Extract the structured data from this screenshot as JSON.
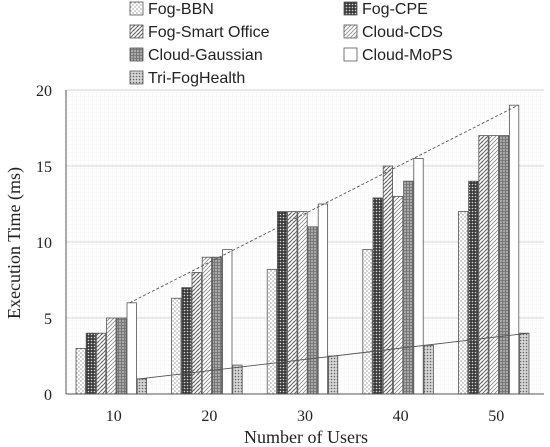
{
  "chart_data": {
    "type": "bar",
    "title": "",
    "xlabel": "Number of Users",
    "ylabel": "Execution Time (ms)",
    "categories": [
      "10",
      "20",
      "30",
      "40",
      "50"
    ],
    "ylim": [
      0,
      20
    ],
    "yticks": [
      "0",
      "5",
      "10",
      "15",
      "20"
    ],
    "grid": true,
    "legend_position": "top",
    "series": [
      {
        "name": "Fog-BBN",
        "values": [
          3,
          6.3,
          8.2,
          9.5,
          12
        ],
        "pattern": "dots-sparse"
      },
      {
        "name": "Fog-CPE",
        "values": [
          4,
          7,
          12,
          12.9,
          14
        ],
        "pattern": "dense-dark"
      },
      {
        "name": "Fog-Smart Office",
        "values": [
          4,
          8,
          12,
          15,
          17
        ],
        "pattern": "dense-diagonal"
      },
      {
        "name": "Cloud-CDS",
        "values": [
          5,
          9,
          12,
          13,
          17
        ],
        "pattern": "diag-light"
      },
      {
        "name": "Cloud-Gaussian",
        "values": [
          5,
          9,
          11,
          14,
          17
        ],
        "pattern": "cross-dense"
      },
      {
        "name": "Cloud-MoPS",
        "values": [
          6,
          9.5,
          12.5,
          15.5,
          19
        ],
        "pattern": "plain"
      },
      {
        "name": "Tri-FogHealth",
        "values": [
          1,
          1.9,
          2.5,
          3.2,
          4
        ],
        "pattern": "dots-dense"
      }
    ],
    "trendlines": [
      {
        "series": "Cloud-MoPS",
        "style": "dashed",
        "from": [
          0,
          6
        ],
        "to": [
          4,
          19
        ]
      },
      {
        "series": "Tri-FogHealth",
        "style": "solid",
        "from": [
          0,
          1
        ],
        "to": [
          4,
          4
        ]
      }
    ]
  }
}
